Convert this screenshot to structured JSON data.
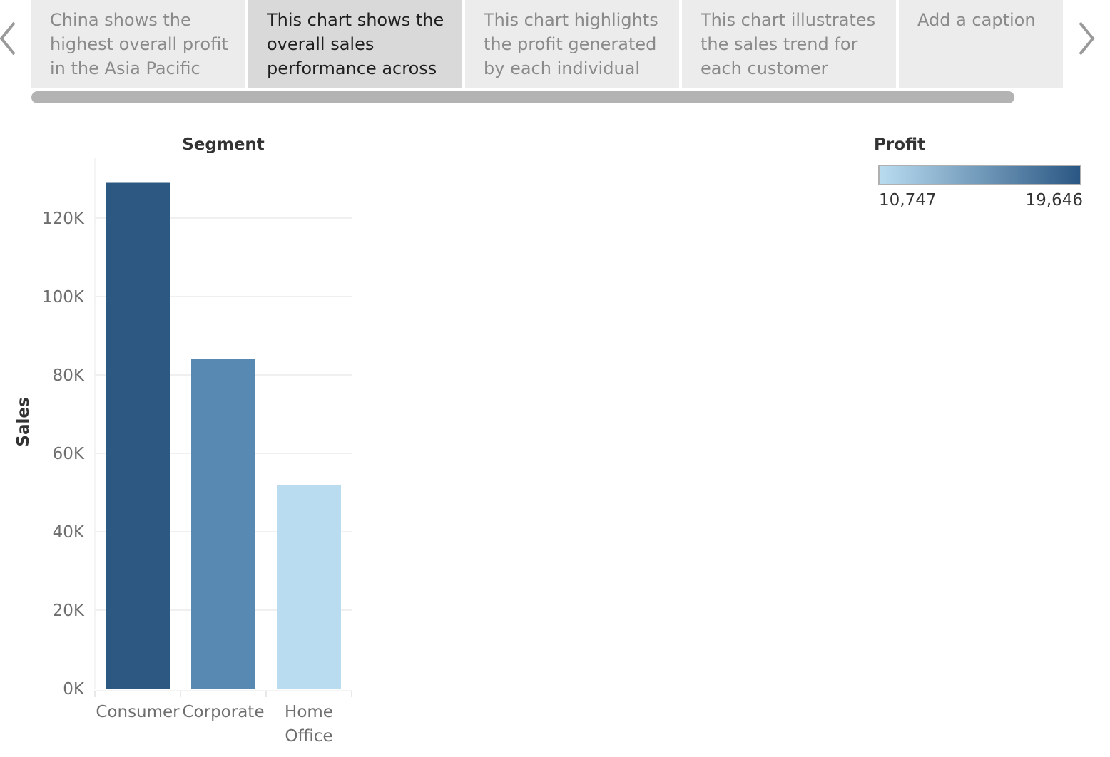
{
  "story": {
    "points": [
      {
        "caption": "China shows the highest overall profit in the Asia Pacific",
        "active": false
      },
      {
        "caption": "This chart shows the overall sales performance across",
        "active": true
      },
      {
        "caption": "This chart highlights the profit generated by each individual",
        "active": false
      },
      {
        "caption": "This chart illustrates the sales trend for each customer",
        "active": false
      },
      {
        "caption": "Add a caption",
        "active": false
      }
    ],
    "prev_icon": "chevron-left-icon",
    "next_icon": "chevron-right-icon"
  },
  "legend": {
    "title": "Profit",
    "min_label": "10,747",
    "max_label": "19,646",
    "color_low": "#b9dcf0",
    "color_high": "#2a5783"
  },
  "chart_data": {
    "type": "bar",
    "title": "",
    "column_header": "Segment",
    "xlabel": "",
    "ylabel": "Sales",
    "categories": [
      "Consumer",
      "Corporate",
      "Home Office"
    ],
    "values": [
      129000,
      84000,
      52000
    ],
    "profit_colors": [
      "#2c5882",
      "#5889b3",
      "#b9dcf0"
    ],
    "ylim": [
      0,
      135000
    ],
    "yticks": [
      0,
      20000,
      40000,
      60000,
      80000,
      100000,
      120000
    ],
    "ytick_labels": [
      "0K",
      "20K",
      "40K",
      "60K",
      "80K",
      "100K",
      "120K"
    ],
    "grid": true,
    "legend_position": "top-right"
  }
}
